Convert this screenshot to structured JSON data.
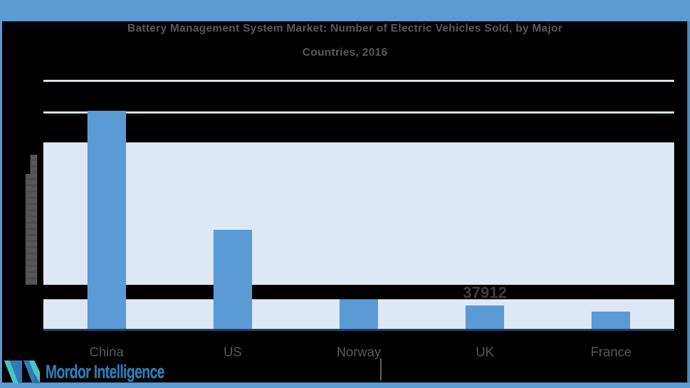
{
  "title": {
    "line1": "Battery Management System Market: Number of Electric Vehicles Sold, by Major",
    "line2": "Countries, 2016"
  },
  "chart_data": {
    "type": "bar",
    "title": "Battery Management System Market: Number of Electric Vehicles Sold, by Major Countries, 2016",
    "categories": [
      "China",
      "US",
      "Norway",
      "UK",
      "France"
    ],
    "values": [
      351000,
      159500,
      47600,
      37912,
      27700
    ],
    "value_labels": {
      "UK": "37912"
    },
    "ylim": [
      0,
      400000
    ],
    "xlabel": "",
    "ylabel": "",
    "legend": false,
    "grid": true,
    "bar_color": "#5b9bd5",
    "plot_band_color": "#dde8f4",
    "gridline_color": "#d9e4f1",
    "axis_line_color": "#1f4466"
  },
  "watermark": {
    "brand": "Mordor Intelligence",
    "mark_teal": "#4cc3c7",
    "mark_blue": "#2e7cb8"
  },
  "frame": {
    "color": "#5b9ad2"
  },
  "text_colors": {
    "title": "#595959",
    "category_label": "#595959",
    "data_label": "#3d3d3d"
  }
}
